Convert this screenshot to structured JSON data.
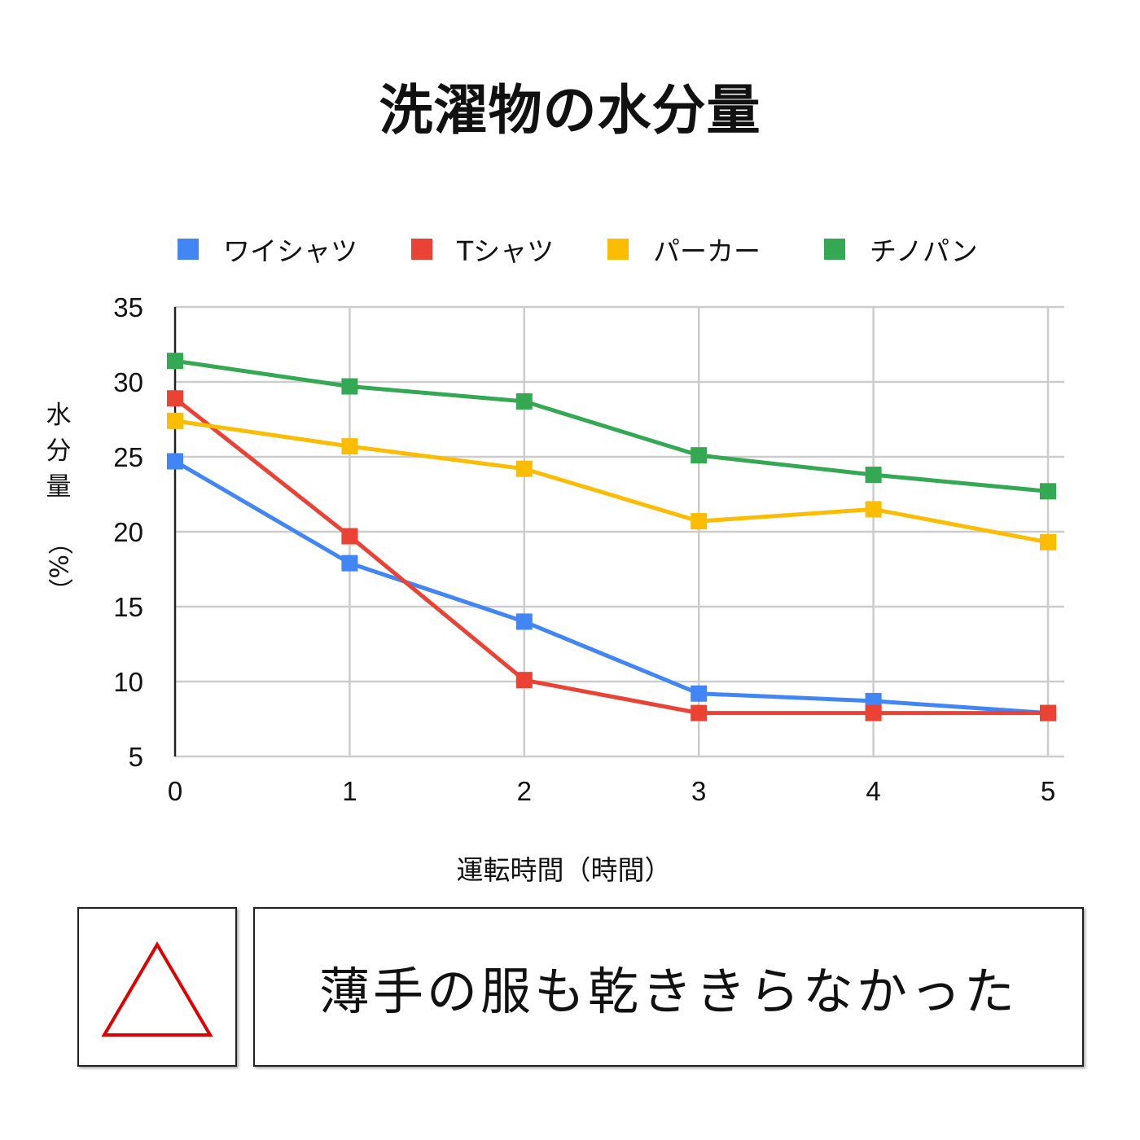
{
  "chart_data": {
    "type": "line",
    "title": "洗濯物の水分量",
    "xlabel": "運転時間（時間）",
    "ylabel_main": "水分量",
    "ylabel_unit": "（%）",
    "x": [
      0,
      1,
      2,
      3,
      4,
      5
    ],
    "x_tick_labels": [
      "0",
      "1",
      "2",
      "3",
      "4",
      "5"
    ],
    "ylim": [
      5,
      35
    ],
    "y_ticks": [
      5,
      10,
      15,
      20,
      25,
      30,
      35
    ],
    "y_tick_labels": [
      "5",
      "10",
      "15",
      "20",
      "25",
      "30",
      "35"
    ],
    "grid": true,
    "legend_position": "top",
    "series": [
      {
        "name": "ワイシャツ",
        "color": "#4285F4",
        "values": [
          24.7,
          17.9,
          14.0,
          9.2,
          8.7,
          7.9
        ]
      },
      {
        "name": "Tシャツ",
        "color": "#EA4335",
        "values": [
          28.9,
          19.7,
          10.1,
          7.9,
          7.9,
          7.9
        ]
      },
      {
        "name": "パーカー",
        "color": "#FBBC04",
        "values": [
          27.4,
          25.7,
          24.2,
          20.7,
          21.5,
          19.3
        ]
      },
      {
        "name": "チノパン",
        "color": "#34A853",
        "values": [
          31.4,
          29.7,
          28.7,
          25.1,
          23.8,
          22.7
        ]
      }
    ]
  },
  "rating": {
    "symbol": "triangle",
    "color": "#E00000"
  },
  "comment": "薄手の服も乾ききらなかった"
}
